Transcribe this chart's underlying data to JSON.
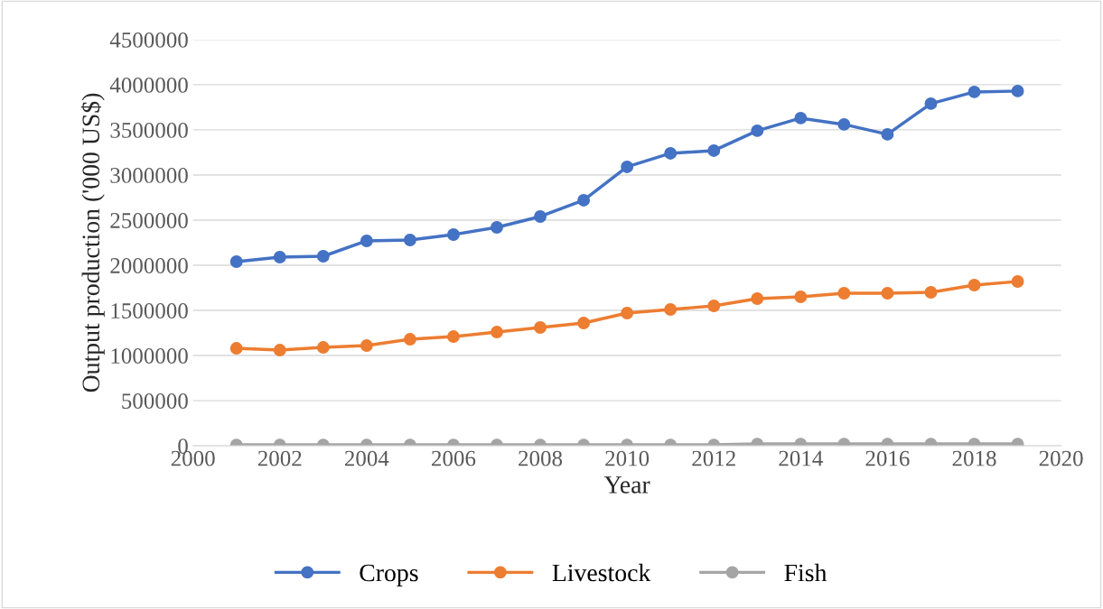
{
  "chart_data": {
    "type": "line",
    "xlabel": "Year",
    "ylabel": "Output production ('000 US$)",
    "x": [
      2001,
      2002,
      2003,
      2004,
      2005,
      2006,
      2007,
      2008,
      2009,
      2010,
      2011,
      2012,
      2013,
      2014,
      2015,
      2016,
      2017,
      2018,
      2019
    ],
    "series": [
      {
        "name": "Crops",
        "color": "#4472c4",
        "values": [
          2040000,
          2090000,
          2100000,
          2270000,
          2280000,
          2340000,
          2420000,
          2540000,
          2720000,
          3090000,
          3240000,
          3270000,
          3490000,
          3630000,
          3560000,
          3450000,
          3790000,
          3920000,
          3930000
        ]
      },
      {
        "name": "Livestock",
        "color": "#ed7d31",
        "values": [
          1080000,
          1060000,
          1090000,
          1110000,
          1180000,
          1210000,
          1260000,
          1310000,
          1360000,
          1470000,
          1510000,
          1550000,
          1630000,
          1650000,
          1690000,
          1690000,
          1700000,
          1780000,
          1820000
        ]
      },
      {
        "name": "Fish",
        "color": "#a5a5a5",
        "values": [
          10000,
          10000,
          10000,
          10000,
          10000,
          10000,
          10000,
          10000,
          10000,
          10000,
          10000,
          10000,
          20000,
          20000,
          20000,
          20000,
          20000,
          20000,
          20000
        ]
      }
    ],
    "xlim": [
      2000,
      2020
    ],
    "xticks": [
      2000,
      2002,
      2004,
      2006,
      2008,
      2010,
      2012,
      2014,
      2016,
      2018,
      2020
    ],
    "ylim": [
      0,
      4500000
    ],
    "yticks": [
      0,
      500000,
      1000000,
      1500000,
      2000000,
      2500000,
      3000000,
      3500000,
      4000000,
      4500000
    ],
    "grid": "y",
    "legend": "bottom",
    "marker": "circle",
    "line_style": "solid"
  }
}
